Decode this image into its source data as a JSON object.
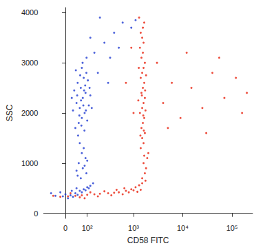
{
  "chart_data": {
    "type": "scatter",
    "xlabel": "CD58 FITC",
    "ylabel": "SSC",
    "xlim": [
      -100,
      262144
    ],
    "xticks": [
      0,
      {
        "value": 100,
        "label": "10²"
      },
      {
        "value": 1000,
        "label": "10³"
      },
      {
        "value": 10000,
        "label": "10⁴"
      },
      {
        "value": 100000,
        "label": "10⁵"
      }
    ],
    "ylim": [
      -100,
      4100
    ],
    "yticks": [
      0,
      1000,
      2000,
      3000,
      4000
    ],
    "grid": false,
    "series": [
      {
        "color": "#1f3bd1",
        "marker": "circle",
        "x": [
          40,
          55,
          70,
          85,
          60,
          45,
          75,
          90,
          65,
          50,
          80,
          95,
          70,
          110,
          30,
          100,
          120,
          35,
          88,
          58,
          78,
          66,
          92,
          48,
          104,
          62,
          84,
          52,
          74,
          96,
          42,
          115,
          68,
          25,
          130,
          82,
          60,
          80,
          70,
          90,
          55,
          75,
          95,
          65,
          85,
          45,
          100,
          50,
          -60,
          -40,
          -20,
          0,
          20,
          40,
          60,
          80,
          100,
          120,
          10,
          30,
          50,
          70,
          90,
          -10,
          110,
          140,
          25,
          45,
          150,
          250,
          400,
          600,
          900,
          200,
          120,
          330,
          500,
          1100,
          180,
          300
        ],
        "values": [
          1700,
          1800,
          1900,
          2000,
          2100,
          2200,
          2300,
          2400,
          2500,
          2600,
          2700,
          2800,
          2900,
          2150,
          2050,
          1850,
          2350,
          2450,
          2550,
          1950,
          2150,
          2250,
          2050,
          2350,
          2650,
          2750,
          1650,
          1550,
          3000,
          3100,
          2850,
          2500,
          1750,
          2300,
          2100,
          2450,
          1400,
          1300,
          1200,
          1100,
          1000,
          900,
          800,
          700,
          950,
          850,
          1050,
          750,
          400,
          350,
          420,
          380,
          360,
          400,
          450,
          480,
          520,
          550,
          300,
          330,
          370,
          420,
          460,
          340,
          500,
          600,
          450,
          500,
          3200,
          3400,
          3600,
          3800,
          3700,
          3900,
          3500,
          3100,
          3300,
          3850,
          2800,
          2600
        ]
      },
      {
        "color": "#e8230f",
        "marker": "circle",
        "x": [
          -50,
          -20,
          10,
          40,
          70,
          100,
          150,
          200,
          300,
          400,
          500,
          700,
          900,
          1100,
          1300,
          1500,
          20,
          60,
          120,
          250,
          350,
          600,
          800,
          1000,
          1200,
          180,
          450,
          650,
          1400,
          85,
          1500,
          1700,
          1800,
          1600,
          1900,
          2000,
          1750,
          1650,
          1400,
          1600,
          1500,
          1700,
          1450,
          1550,
          1650,
          1350,
          1500,
          1600,
          1700,
          1450,
          1550,
          1650,
          1400,
          1500,
          1600,
          1700,
          1450,
          1550,
          1350,
          1600,
          1500,
          1400,
          1550,
          1650,
          1300,
          1750,
          1250,
          1800,
          1380,
          1620,
          1720,
          1280,
          1480,
          1580,
          4000,
          6000,
          9000,
          15000,
          25000,
          40000,
          70000,
          120000,
          200000,
          3000,
          5000,
          12000,
          30000,
          55000,
          160000,
          700,
          900,
          1000
        ],
        "values": [
          350,
          330,
          340,
          350,
          360,
          370,
          380,
          390,
          400,
          410,
          420,
          450,
          480,
          520,
          560,
          600,
          400,
          320,
          420,
          440,
          360,
          380,
          420,
          460,
          430,
          340,
          470,
          500,
          470,
          300,
          700,
          800,
          900,
          1000,
          1100,
          1200,
          650,
          1150,
          1300,
          1400,
          1500,
          1600,
          1700,
          1800,
          1900,
          2000,
          2100,
          2200,
          2300,
          2400,
          2500,
          2600,
          2700,
          2800,
          2900,
          3000,
          3100,
          3200,
          3300,
          3400,
          3500,
          3600,
          3700,
          3800,
          3900,
          2050,
          2250,
          2750,
          1550,
          1650,
          2450,
          2900,
          2350,
          1950,
          2200,
          2600,
          1900,
          2500,
          2100,
          2800,
          2300,
          2700,
          2400,
          3000,
          1700,
          3200,
          1600,
          3100,
          2000,
          2600,
          3300,
          2000
        ]
      }
    ]
  }
}
